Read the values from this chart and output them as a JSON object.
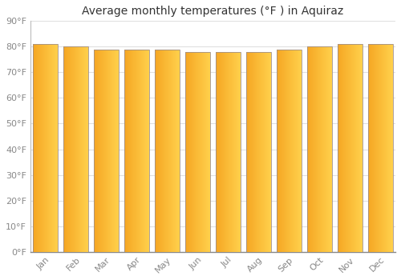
{
  "title": "Average monthly temperatures (°F ) in Aquiraz",
  "months": [
    "Jan",
    "Feb",
    "Mar",
    "Apr",
    "May",
    "Jun",
    "Jul",
    "Aug",
    "Sep",
    "Oct",
    "Nov",
    "Dec"
  ],
  "values": [
    81,
    80,
    79,
    79,
    79,
    78,
    78,
    78,
    79,
    80,
    81,
    81
  ],
  "bar_color_left": "#F5A623",
  "bar_color_right": "#FFD04B",
  "bar_edge_color": "#A0908A",
  "background_color": "#FFFFFF",
  "grid_color": "#E0E0E0",
  "ylim": [
    0,
    90
  ],
  "yticks": [
    0,
    10,
    20,
    30,
    40,
    50,
    60,
    70,
    80,
    90
  ],
  "ytick_labels": [
    "0°F",
    "10°F",
    "20°F",
    "30°F",
    "40°F",
    "50°F",
    "60°F",
    "70°F",
    "80°F",
    "90°F"
  ],
  "title_fontsize": 10,
  "tick_fontsize": 8,
  "figsize": [
    5.0,
    3.5
  ],
  "dpi": 100,
  "bar_width": 0.82
}
